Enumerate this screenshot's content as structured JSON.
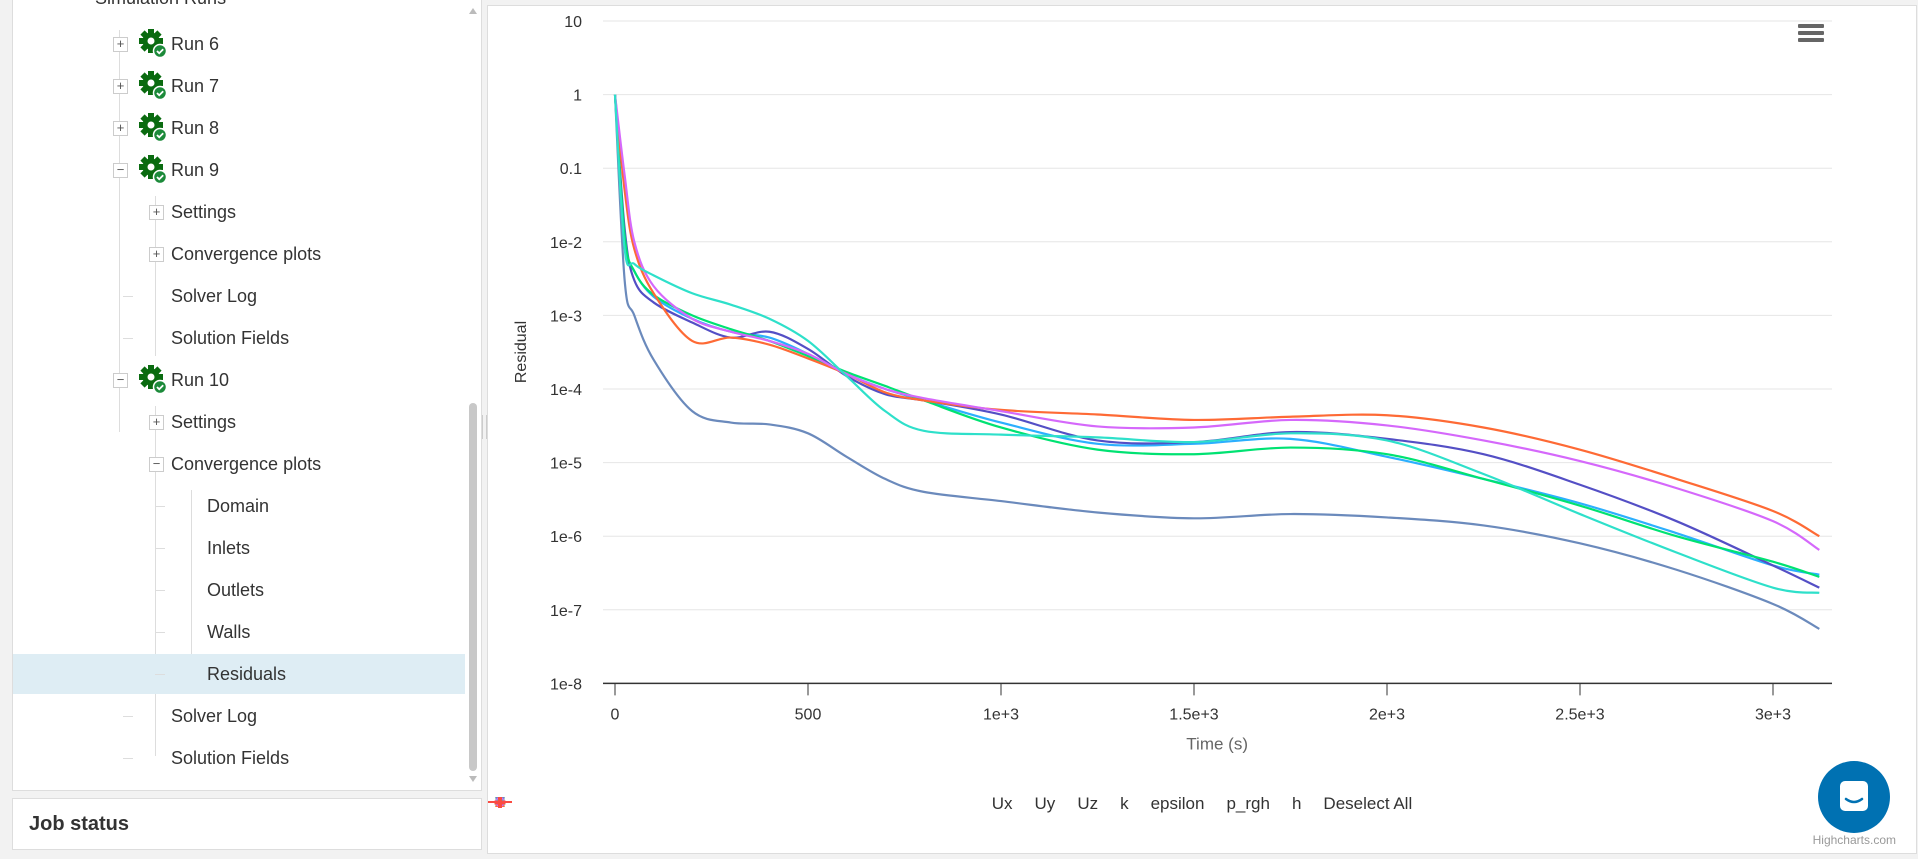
{
  "tree": {
    "header": "Simulation Runs",
    "items": [
      {
        "label": "Run 6",
        "level": 1,
        "toggle": "+",
        "icon": "gear-check"
      },
      {
        "label": "Run 7",
        "level": 1,
        "toggle": "+",
        "icon": "gear-check"
      },
      {
        "label": "Run 8",
        "level": 1,
        "toggle": "+",
        "icon": "gear-check"
      },
      {
        "label": "Run 9",
        "level": 1,
        "toggle": "−",
        "icon": "gear-check"
      },
      {
        "label": "Settings",
        "level": 2,
        "toggle": "+"
      },
      {
        "label": "Convergence plots",
        "level": 2,
        "toggle": "+"
      },
      {
        "label": "Solver Log",
        "level": 2
      },
      {
        "label": "Solution Fields",
        "level": 2
      },
      {
        "label": "Run 10",
        "level": 1,
        "toggle": "−",
        "icon": "gear-check"
      },
      {
        "label": "Settings",
        "level": 2,
        "toggle": "+"
      },
      {
        "label": "Convergence plots",
        "level": 2,
        "toggle": "−"
      },
      {
        "label": "Domain",
        "level": 3
      },
      {
        "label": "Inlets",
        "level": 3
      },
      {
        "label": "Outlets",
        "level": 3
      },
      {
        "label": "Walls",
        "level": 3
      },
      {
        "label": "Residuals",
        "level": 3,
        "selected": true
      },
      {
        "label": "Solver Log",
        "level": 2
      },
      {
        "label": "Solution Fields",
        "level": 2
      }
    ]
  },
  "job_status": {
    "title": "Job status"
  },
  "chart_data": {
    "type": "line",
    "title": "",
    "xlabel": "Time (s)",
    "ylabel": "Residual",
    "yscale": "log",
    "ylim": [
      1e-08,
      10
    ],
    "xlim": [
      0,
      3120
    ],
    "x_ticks": [
      "0",
      "500",
      "1e+3",
      "1.5e+3",
      "2e+3",
      "2.5e+3",
      "3e+3"
    ],
    "x_tick_values": [
      0,
      500,
      1000,
      1500,
      2000,
      2500,
      3000
    ],
    "y_ticks": [
      "10",
      "1",
      "0.1",
      "1e-2",
      "1e-3",
      "1e-4",
      "1e-5",
      "1e-6",
      "1e-7",
      "1e-8"
    ],
    "grid": true,
    "legend_position": "bottom-center",
    "x": [
      0,
      25,
      50,
      100,
      200,
      300,
      400,
      500,
      600,
      700,
      800,
      1000,
      1250,
      1500,
      1750,
      2000,
      2250,
      2500,
      2750,
      3000,
      3120
    ],
    "series": [
      {
        "name": "Ux",
        "color": "#2caffe",
        "marker": "circle",
        "values": [
          1,
          0.01,
          0.004,
          0.0018,
          0.0009,
          0.0006,
          0.0005,
          0.0003,
          0.00016,
          0.0001,
          7e-05,
          3.5e-05,
          1.8e-05,
          1.8e-05,
          2.1e-05,
          1.2e-05,
          6e-06,
          2.8e-06,
          1.1e-06,
          4e-07,
          3e-07
        ]
      },
      {
        "name": "Uy",
        "color": "#544fc5",
        "marker": "diamond",
        "values": [
          1,
          0.015,
          0.003,
          0.0015,
          0.0008,
          0.0005,
          0.0006,
          0.00035,
          0.00015,
          8.5e-05,
          7e-05,
          4.5e-05,
          2e-05,
          1.9e-05,
          2.6e-05,
          2.1e-05,
          1.3e-05,
          5e-06,
          1.6e-06,
          4e-07,
          2e-07
        ]
      },
      {
        "name": "Uz",
        "color": "#00e272",
        "marker": "square",
        "values": [
          1,
          0.012,
          0.004,
          0.0019,
          0.001,
          0.00065,
          0.00045,
          0.00028,
          0.00017,
          0.00011,
          7e-05,
          3e-05,
          1.5e-05,
          1.3e-05,
          1.6e-05,
          1.3e-05,
          6e-06,
          2.6e-06,
          1e-06,
          4.5e-07,
          2.8e-07
        ]
      },
      {
        "name": "k",
        "color": "#fe6a35",
        "marker": "triangle",
        "values": [
          1,
          0.05,
          0.008,
          0.002,
          0.00045,
          0.0005,
          0.0004,
          0.00026,
          0.00016,
          9e-05,
          7e-05,
          5.2e-05,
          4.5e-05,
          3.8e-05,
          4.2e-05,
          4.4e-05,
          3e-05,
          1.5e-05,
          6e-06,
          2.2e-06,
          1e-06
        ]
      },
      {
        "name": "epsilon",
        "color": "#6b8abc",
        "marker": "triangle-down",
        "values": [
          1,
          0.003,
          0.001,
          0.00025,
          5e-05,
          3.5e-05,
          3.3e-05,
          2.5e-05,
          1.2e-05,
          6e-06,
          4e-06,
          3e-06,
          2.1e-06,
          1.75e-06,
          2e-06,
          1.8e-06,
          1.4e-06,
          8e-07,
          3.5e-07,
          1.2e-07,
          5.5e-08
        ]
      },
      {
        "name": "p_rgh",
        "color": "#d568fb",
        "marker": "circle",
        "values": [
          1,
          0.08,
          0.01,
          0.0025,
          0.0009,
          0.0006,
          0.00045,
          0.0003,
          0.00016,
          0.0001,
          7.5e-05,
          5e-05,
          3.1e-05,
          3e-05,
          3.8e-05,
          3.2e-05,
          2e-05,
          1.05e-05,
          4.5e-06,
          1.6e-06,
          6.5e-07
        ]
      },
      {
        "name": "h",
        "color": "#2ee0ca",
        "marker": "diamond",
        "values": [
          1,
          0.008,
          0.005,
          0.0035,
          0.002,
          0.0014,
          0.0009,
          0.00045,
          0.00015,
          5e-05,
          2.7e-05,
          2.4e-05,
          2.2e-05,
          1.9e-05,
          2.5e-05,
          2e-05,
          7e-06,
          2e-06,
          6e-07,
          2e-07,
          1.7e-07
        ]
      }
    ],
    "extra_legend": {
      "name": "Deselect All",
      "color": "#fa4b42",
      "marker": "plus"
    }
  },
  "credits": "Highcharts.com",
  "icons": {
    "menu": "hamburger-menu-icon",
    "chat": "chat-icon"
  }
}
